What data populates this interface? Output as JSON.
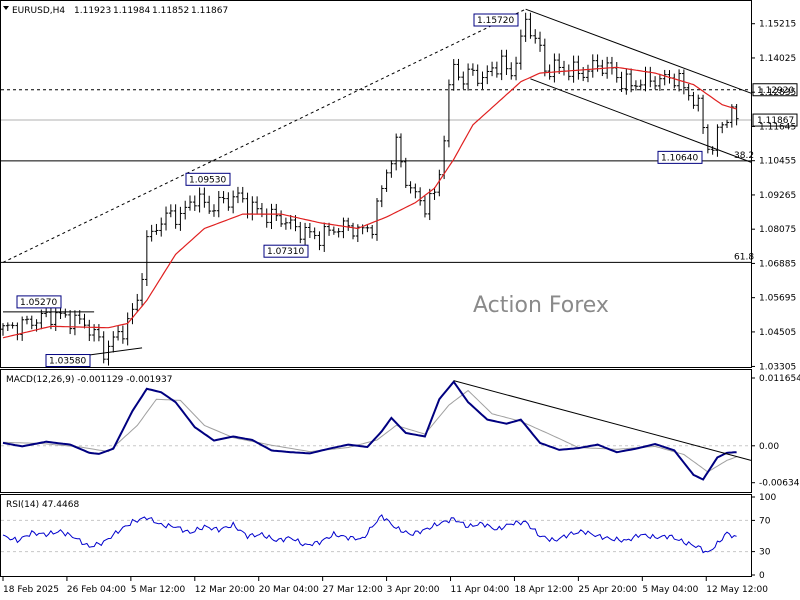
{
  "header": {
    "symbol": "EURUSD,H4",
    "open": "1.11923",
    "high": "1.11984",
    "low": "1.11852",
    "close": "1.11867"
  },
  "watermark": "Action Forex",
  "colors": {
    "candle": "#000000",
    "sma": "#e02020",
    "macd_line": "#000080",
    "macd_signal": "#a0a0a0",
    "rsi": "#0000cc",
    "trendline": "#000000",
    "hline": "#000000"
  },
  "chart_data": [
    {
      "type": "candlestick",
      "title": "EURUSD,H4",
      "ylim": [
        1.0339,
        1.159
      ],
      "y_ticks": [
        "1.15215",
        "1.14025",
        "1.12835",
        "1.11645",
        "1.10455",
        "1.09265",
        "1.08075",
        "1.06885",
        "1.05695",
        "1.04505",
        "1.03305"
      ],
      "x_ticks": [
        "18 Feb 2025",
        "26 Feb 04:00",
        "5 Mar 12:00",
        "12 Mar 20:00",
        "20 Mar 04:00",
        "27 Mar 12:00",
        "3 Apr 20:00",
        "11 Apr 04:00",
        "18 Apr 12:00",
        "25 Apr 20:00",
        "5 May 04:00",
        "12 May 12:00"
      ],
      "close_path": [
        {
          "x": 0,
          "y": 1.046
        },
        {
          "x": 4,
          "y": 1.0475
        },
        {
          "x": 8,
          "y": 1.05
        },
        {
          "x": 11,
          "y": 1.051
        },
        {
          "x": 14,
          "y": 1.0495
        },
        {
          "x": 17,
          "y": 1.048
        },
        {
          "x": 20,
          "y": 1.042
        },
        {
          "x": 21,
          "y": 1.038
        },
        {
          "x": 23,
          "y": 1.042
        },
        {
          "x": 26,
          "y": 1.048
        },
        {
          "x": 28,
          "y": 1.056
        },
        {
          "x": 30,
          "y": 1.076
        },
        {
          "x": 32,
          "y": 1.082
        },
        {
          "x": 35,
          "y": 1.086
        },
        {
          "x": 37,
          "y": 1.085
        },
        {
          "x": 40,
          "y": 1.092
        },
        {
          "x": 43,
          "y": 1.088
        },
        {
          "x": 46,
          "y": 1.0905
        },
        {
          "x": 49,
          "y": 1.092
        },
        {
          "x": 52,
          "y": 1.088
        },
        {
          "x": 55,
          "y": 1.0855
        },
        {
          "x": 58,
          "y": 1.0845
        },
        {
          "x": 61,
          "y": 1.081
        },
        {
          "x": 64,
          "y": 1.079
        },
        {
          "x": 66,
          "y": 1.078
        },
        {
          "x": 69,
          "y": 1.081
        },
        {
          "x": 72,
          "y": 1.0815
        },
        {
          "x": 75,
          "y": 1.08
        },
        {
          "x": 77,
          "y": 1.082
        },
        {
          "x": 78,
          "y": 1.088
        },
        {
          "x": 80,
          "y": 1.101
        },
        {
          "x": 82,
          "y": 1.11
        },
        {
          "x": 84,
          "y": 1.098
        },
        {
          "x": 86,
          "y": 1.092
        },
        {
          "x": 88,
          "y": 1.089
        },
        {
          "x": 90,
          "y": 1.093
        },
        {
          "x": 91,
          "y": 1.1
        },
        {
          "x": 93,
          "y": 1.128
        },
        {
          "x": 94,
          "y": 1.138
        },
        {
          "x": 96,
          "y": 1.132
        },
        {
          "x": 98,
          "y": 1.136
        },
        {
          "x": 100,
          "y": 1.132
        },
        {
          "x": 102,
          "y": 1.137
        },
        {
          "x": 104,
          "y": 1.138
        },
        {
          "x": 106,
          "y": 1.135
        },
        {
          "x": 108,
          "y": 1.145
        },
        {
          "x": 109,
          "y": 1.154
        },
        {
          "x": 110,
          "y": 1.15
        },
        {
          "x": 112,
          "y": 1.143
        },
        {
          "x": 113,
          "y": 1.136
        },
        {
          "x": 115,
          "y": 1.137
        },
        {
          "x": 118,
          "y": 1.136
        },
        {
          "x": 121,
          "y": 1.135
        },
        {
          "x": 124,
          "y": 1.138
        },
        {
          "x": 127,
          "y": 1.136
        },
        {
          "x": 129,
          "y": 1.132
        },
        {
          "x": 131,
          "y": 1.131
        },
        {
          "x": 133,
          "y": 1.132
        },
        {
          "x": 135,
          "y": 1.133
        },
        {
          "x": 137,
          "y": 1.132
        },
        {
          "x": 139,
          "y": 1.134
        },
        {
          "x": 141,
          "y": 1.132
        },
        {
          "x": 143,
          "y": 1.128
        },
        {
          "x": 145,
          "y": 1.123
        },
        {
          "x": 146,
          "y": 1.117
        },
        {
          "x": 147,
          "y": 1.11
        },
        {
          "x": 148,
          "y": 1.108
        },
        {
          "x": 149,
          "y": 1.114
        },
        {
          "x": 150,
          "y": 1.118
        },
        {
          "x": 151,
          "y": 1.12
        },
        {
          "x": 152,
          "y": 1.121
        },
        {
          "x": 153,
          "y": 1.1187
        }
      ],
      "sma_path": [
        {
          "x": 0,
          "y": 1.043
        },
        {
          "x": 10,
          "y": 1.047
        },
        {
          "x": 22,
          "y": 1.0465
        },
        {
          "x": 26,
          "y": 1.048
        },
        {
          "x": 30,
          "y": 1.056
        },
        {
          "x": 36,
          "y": 1.072
        },
        {
          "x": 42,
          "y": 1.081
        },
        {
          "x": 50,
          "y": 1.086
        },
        {
          "x": 58,
          "y": 1.086
        },
        {
          "x": 66,
          "y": 1.083
        },
        {
          "x": 74,
          "y": 1.081
        },
        {
          "x": 80,
          "y": 1.085
        },
        {
          "x": 86,
          "y": 1.09
        },
        {
          "x": 90,
          "y": 1.095
        },
        {
          "x": 94,
          "y": 1.105
        },
        {
          "x": 98,
          "y": 1.117
        },
        {
          "x": 104,
          "y": 1.126
        },
        {
          "x": 108,
          "y": 1.132
        },
        {
          "x": 112,
          "y": 1.135
        },
        {
          "x": 120,
          "y": 1.136
        },
        {
          "x": 128,
          "y": 1.137
        },
        {
          "x": 136,
          "y": 1.135
        },
        {
          "x": 144,
          "y": 1.131
        },
        {
          "x": 150,
          "y": 1.124
        },
        {
          "x": 153,
          "y": 1.1225
        }
      ],
      "hlines": [
        {
          "value": 1.1292,
          "label": "1.12920",
          "style": "dashed"
        },
        {
          "value": 1.11867,
          "label": "1.11867",
          "style": "solid-gray"
        },
        {
          "value": 1.1045,
          "label": "38.2",
          "style": "solid"
        },
        {
          "value": 1.0692,
          "label": "61.8",
          "style": "solid"
        }
      ],
      "annotations": [
        {
          "x": 109,
          "y": 1.1572,
          "label": "1.15720"
        },
        {
          "x": 45,
          "y": 1.0953,
          "label": "1.09530"
        },
        {
          "x": 64,
          "y": 1.0731,
          "label": "1.07310"
        },
        {
          "x": 146,
          "y": 1.1064,
          "label": "1.10640"
        },
        {
          "x": 10,
          "y": 1.0527,
          "label": "1.05270"
        },
        {
          "x": 19,
          "y": 1.0358,
          "label": "1.03580"
        }
      ],
      "trendlines": [
        {
          "from": {
            "x": 0,
            "y": 1.0692
          },
          "to": {
            "x": 109,
            "y": 1.1572
          },
          "style": "dotted"
        },
        {
          "from": {
            "x": 109,
            "y": 1.1572
          },
          "to": {
            "x": 156,
            "y": 1.128
          },
          "style": "solid"
        },
        {
          "from": {
            "x": 110,
            "y": 1.133
          },
          "to": {
            "x": 156,
            "y": 1.104
          },
          "style": "solid"
        },
        {
          "from": {
            "x": 17,
            "y": 1.0368
          },
          "to": {
            "x": 29,
            "y": 1.0395
          },
          "style": "solid"
        },
        {
          "from": {
            "x": 0,
            "y": 1.052
          },
          "to": {
            "x": 19,
            "y": 1.052
          },
          "style": "solid"
        }
      ]
    },
    {
      "type": "line",
      "title": "MACD(12,26,9) -0.001129 -0.001937",
      "ylim": [
        -0.0076,
        0.011654
      ],
      "y_ticks": [
        "0.011654",
        "0.00",
        "-0.006345"
      ],
      "macd_path": [
        {
          "x": 0,
          "y": 0.0005
        },
        {
          "x": 4,
          "y": -0.0001
        },
        {
          "x": 9,
          "y": 0.0007
        },
        {
          "x": 14,
          "y": 0.0002
        },
        {
          "x": 18,
          "y": -0.0012
        },
        {
          "x": 20,
          "y": -0.0014
        },
        {
          "x": 23,
          "y": -0.0005
        },
        {
          "x": 27,
          "y": 0.006
        },
        {
          "x": 30,
          "y": 0.0098
        },
        {
          "x": 33,
          "y": 0.0092
        },
        {
          "x": 36,
          "y": 0.0075
        },
        {
          "x": 40,
          "y": 0.0032
        },
        {
          "x": 44,
          "y": 0.0009
        },
        {
          "x": 48,
          "y": 0.0016
        },
        {
          "x": 52,
          "y": 0.001
        },
        {
          "x": 56,
          "y": -0.0008
        },
        {
          "x": 60,
          "y": -0.0011
        },
        {
          "x": 64,
          "y": -0.0013
        },
        {
          "x": 68,
          "y": -0.0005
        },
        {
          "x": 72,
          "y": 0.0002
        },
        {
          "x": 76,
          "y": -0.0002
        },
        {
          "x": 79,
          "y": 0.0025
        },
        {
          "x": 81,
          "y": 0.0048
        },
        {
          "x": 84,
          "y": 0.0022
        },
        {
          "x": 88,
          "y": 0.0016
        },
        {
          "x": 91,
          "y": 0.008
        },
        {
          "x": 94,
          "y": 0.011
        },
        {
          "x": 97,
          "y": 0.0075
        },
        {
          "x": 101,
          "y": 0.0045
        },
        {
          "x": 105,
          "y": 0.0038
        },
        {
          "x": 108,
          "y": 0.0045
        },
        {
          "x": 112,
          "y": 0.0005
        },
        {
          "x": 116,
          "y": -0.0007
        },
        {
          "x": 120,
          "y": -0.0004
        },
        {
          "x": 124,
          "y": 0.0002
        },
        {
          "x": 128,
          "y": -0.0011
        },
        {
          "x": 132,
          "y": -0.0005
        },
        {
          "x": 136,
          "y": 0.0003
        },
        {
          "x": 140,
          "y": -0.0008
        },
        {
          "x": 144,
          "y": -0.005
        },
        {
          "x": 146,
          "y": -0.0058
        },
        {
          "x": 149,
          "y": -0.002
        },
        {
          "x": 151,
          "y": -0.0012
        },
        {
          "x": 153,
          "y": -0.0011
        }
      ],
      "signal_path": [
        {
          "x": 0,
          "y": 0.0006
        },
        {
          "x": 8,
          "y": 0.0004
        },
        {
          "x": 16,
          "y": -0.0002
        },
        {
          "x": 22,
          "y": -0.001
        },
        {
          "x": 28,
          "y": 0.0035
        },
        {
          "x": 32,
          "y": 0.008
        },
        {
          "x": 37,
          "y": 0.0078
        },
        {
          "x": 42,
          "y": 0.0035
        },
        {
          "x": 48,
          "y": 0.0014
        },
        {
          "x": 56,
          "y": 0.0001
        },
        {
          "x": 64,
          "y": -0.001
        },
        {
          "x": 72,
          "y": -0.0003
        },
        {
          "x": 78,
          "y": 0.001
        },
        {
          "x": 82,
          "y": 0.0035
        },
        {
          "x": 88,
          "y": 0.002
        },
        {
          "x": 93,
          "y": 0.007
        },
        {
          "x": 97,
          "y": 0.0095
        },
        {
          "x": 102,
          "y": 0.0055
        },
        {
          "x": 108,
          "y": 0.0042
        },
        {
          "x": 114,
          "y": 0.002
        },
        {
          "x": 120,
          "y": -0.0003
        },
        {
          "x": 128,
          "y": -0.0006
        },
        {
          "x": 136,
          "y": -0.0001
        },
        {
          "x": 142,
          "y": -0.0015
        },
        {
          "x": 147,
          "y": -0.0045
        },
        {
          "x": 151,
          "y": -0.0025
        },
        {
          "x": 153,
          "y": -0.0019
        }
      ],
      "trendlines": [
        {
          "from": {
            "x": 94,
            "y": 0.0112
          },
          "to": {
            "x": 156,
            "y": -0.0025
          },
          "style": "solid"
        }
      ]
    },
    {
      "type": "line",
      "title": "RSI(14) 47.4468",
      "ylim": [
        0,
        100
      ],
      "y_ticks": [
        "100",
        "70",
        "30",
        "0"
      ],
      "levels": [
        70,
        30
      ],
      "rsi_path": [
        {
          "x": 0,
          "y": 50
        },
        {
          "x": 3,
          "y": 44
        },
        {
          "x": 6,
          "y": 54
        },
        {
          "x": 9,
          "y": 52
        },
        {
          "x": 12,
          "y": 56
        },
        {
          "x": 15,
          "y": 48
        },
        {
          "x": 18,
          "y": 36
        },
        {
          "x": 21,
          "y": 42
        },
        {
          "x": 24,
          "y": 56
        },
        {
          "x": 27,
          "y": 68
        },
        {
          "x": 30,
          "y": 74
        },
        {
          "x": 33,
          "y": 64
        },
        {
          "x": 36,
          "y": 62
        },
        {
          "x": 39,
          "y": 54
        },
        {
          "x": 42,
          "y": 62
        },
        {
          "x": 45,
          "y": 58
        },
        {
          "x": 48,
          "y": 64
        },
        {
          "x": 51,
          "y": 50
        },
        {
          "x": 54,
          "y": 52
        },
        {
          "x": 57,
          "y": 44
        },
        {
          "x": 60,
          "y": 48
        },
        {
          "x": 63,
          "y": 38
        },
        {
          "x": 66,
          "y": 42
        },
        {
          "x": 69,
          "y": 52
        },
        {
          "x": 72,
          "y": 48
        },
        {
          "x": 75,
          "y": 46
        },
        {
          "x": 77,
          "y": 62
        },
        {
          "x": 79,
          "y": 76
        },
        {
          "x": 82,
          "y": 60
        },
        {
          "x": 85,
          "y": 52
        },
        {
          "x": 88,
          "y": 58
        },
        {
          "x": 91,
          "y": 66
        },
        {
          "x": 94,
          "y": 72
        },
        {
          "x": 97,
          "y": 62
        },
        {
          "x": 100,
          "y": 66
        },
        {
          "x": 103,
          "y": 58
        },
        {
          "x": 106,
          "y": 66
        },
        {
          "x": 109,
          "y": 68
        },
        {
          "x": 112,
          "y": 50
        },
        {
          "x": 115,
          "y": 44
        },
        {
          "x": 118,
          "y": 52
        },
        {
          "x": 121,
          "y": 56
        },
        {
          "x": 124,
          "y": 50
        },
        {
          "x": 127,
          "y": 46
        },
        {
          "x": 130,
          "y": 44
        },
        {
          "x": 133,
          "y": 52
        },
        {
          "x": 136,
          "y": 48
        },
        {
          "x": 139,
          "y": 50
        },
        {
          "x": 142,
          "y": 42
        },
        {
          "x": 145,
          "y": 36
        },
        {
          "x": 147,
          "y": 28
        },
        {
          "x": 149,
          "y": 40
        },
        {
          "x": 151,
          "y": 54
        },
        {
          "x": 153,
          "y": 47.4
        }
      ]
    }
  ]
}
